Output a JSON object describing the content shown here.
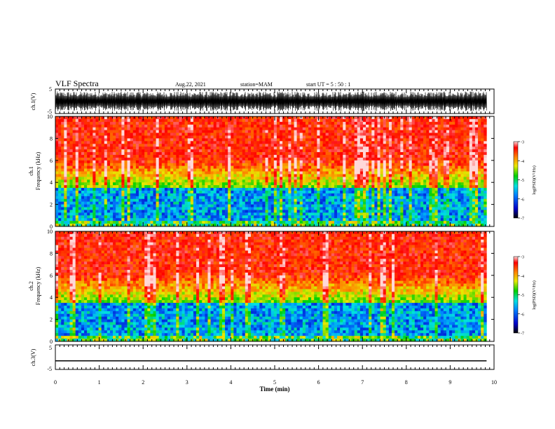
{
  "header": {
    "title": "VLF Spectra",
    "date": "Aug.22, 2021",
    "station": "station=MAM",
    "start": "start UT = 5 : 50 : 1"
  },
  "chart_data": [
    {
      "type": "line",
      "panel": "ch1-waveform",
      "ylabel": "ch.1(V)",
      "yticks": [
        "5",
        "-5"
      ],
      "ylim": [
        -5,
        5
      ],
      "xlim": [
        0,
        10
      ],
      "description_signal": "dense noise waveform"
    },
    {
      "type": "heatmap",
      "panel": "ch1-spectrogram",
      "ylabel_line1": "ch.1",
      "ylabel_line2": "Frequency (kHz)",
      "yticks": [
        "0",
        "2",
        "4",
        "6",
        "8",
        "10"
      ],
      "ylim": [
        0,
        10
      ],
      "xlim": [
        0,
        10.0
      ],
      "colorbar": {
        "label": "log(PSD)(V²/Hz)",
        "ticks": [
          "-3",
          "-4",
          "-5",
          "-6",
          "-7"
        ],
        "range": [
          -7,
          -3
        ]
      }
    },
    {
      "type": "heatmap",
      "panel": "ch2-spectrogram",
      "ylabel_line1": "ch.2",
      "ylabel_line2": "Frequency (kHz)",
      "yticks": [
        "0",
        "2",
        "4",
        "6",
        "8",
        "10"
      ],
      "ylim": [
        0,
        10
      ],
      "xlim": [
        0,
        10.0
      ],
      "colorbar": {
        "label": "log(PSD)(V²/Hz)",
        "ticks": [
          "-3",
          "-4",
          "-5",
          "-6",
          "-7"
        ],
        "range": [
          -7,
          -3
        ]
      }
    },
    {
      "type": "line",
      "panel": "ch3-waveform",
      "ylabel": "ch.3(V)",
      "yticks": [
        "5",
        "-5"
      ],
      "ylim": [
        -5,
        5
      ],
      "xlim": [
        0,
        10
      ],
      "constant_value": -1.5
    }
  ],
  "xaxis": {
    "label": "Time (min)",
    "ticks": [
      "0",
      "1",
      "2",
      "3",
      "4",
      "5",
      "6",
      "7",
      "8",
      "9",
      "10"
    ],
    "range": [
      0,
      10
    ],
    "data_end": 9.83
  }
}
